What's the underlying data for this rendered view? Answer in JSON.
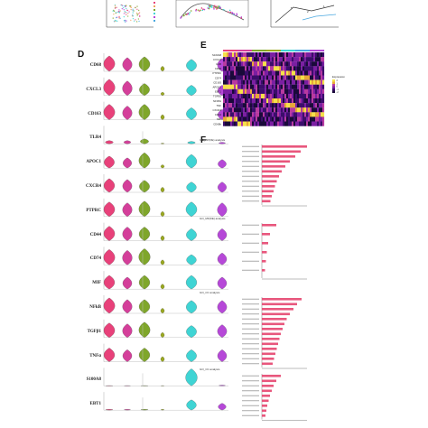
{
  "panels": {
    "d_label": "D",
    "e_label": "E",
    "f_label": "F"
  },
  "top_strip": {
    "scatter_labels": [
      "5",
      "2",
      "1"
    ]
  },
  "violin_genes": [
    "CD68",
    "CXCL3",
    "CD163",
    "TLR4",
    "APOC1",
    "CXCR4",
    "PTPRC",
    "CD44",
    "CD74",
    "MIF",
    "NFkB",
    "TGFβ1",
    "TNFα",
    "S100A8",
    "EBT1"
  ],
  "violin_colors": [
    "#e8417a",
    "#d43f9a",
    "#7fa62a",
    "#9aa81f",
    "#d9d9d9",
    "#3fd4d4",
    "#4aa8e0",
    "#b648d8"
  ],
  "heatmap": {
    "genes": [
      "S100A8",
      "CXCL3",
      "IL1B",
      "CD68",
      "PTPRC",
      "CD74",
      "CD163",
      "APOC1",
      "EBT1",
      "TGFB1",
      "NFKB1",
      "TNF",
      "CXCR4",
      "CD44",
      "MIF",
      "CD68b"
    ],
    "legend_title": "Expression",
    "legend_ticks": [
      "2",
      "1",
      "0",
      "-1",
      "-2"
    ]
  },
  "go": {
    "sections": [
      {
        "title": "GO_BP(DE) analysis",
        "bars": [
          1.0,
          0.86,
          0.74,
          0.62,
          0.52,
          0.44,
          0.38,
          0.33,
          0.29,
          0.26,
          0.22,
          0.19
        ]
      },
      {
        "title": "GO_MF(DE) analysis",
        "bars": [
          0.32,
          0.18,
          0.14,
          0.11,
          0.09,
          0.07
        ]
      },
      {
        "title": "GO_CC analysis",
        "bars": [
          0.88,
          0.78,
          0.7,
          0.62,
          0.55,
          0.5,
          0.46,
          0.42,
          0.39,
          0.36,
          0.33,
          0.3,
          0.27,
          0.24
        ]
      },
      {
        "title": "GO_CC analysis",
        "bars": [
          0.42,
          0.32,
          0.26,
          0.22,
          0.18,
          0.15,
          0.12,
          0.1,
          0.08
        ]
      }
    ],
    "bar_color": "#e8577d"
  }
}
